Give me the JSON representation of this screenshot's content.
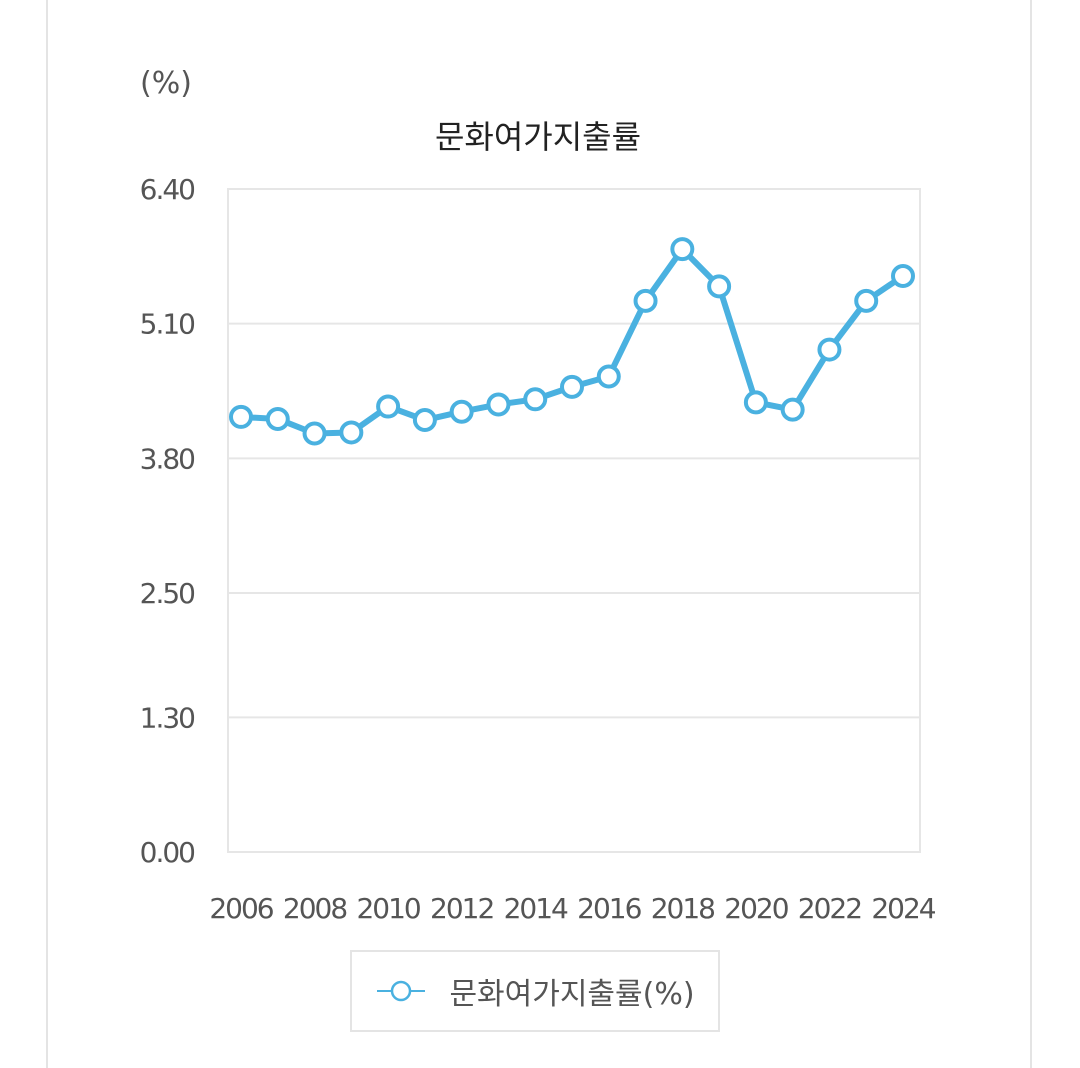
{
  "chart_data": {
    "type": "line",
    "title": "문화여가지출률",
    "unit_label": "(%)",
    "x": [
      2006,
      2007,
      2008,
      2009,
      2010,
      2011,
      2012,
      2013,
      2014,
      2015,
      2016,
      2017,
      2018,
      2019,
      2020,
      2021,
      2022,
      2023,
      2024
    ],
    "x_tick_labels": [
      "2006",
      "2008",
      "2010",
      "2012",
      "2014",
      "2016",
      "2018",
      "2020",
      "2022",
      "2024"
    ],
    "y_tick_labels": [
      "0.00",
      "1.30",
      "2.50",
      "3.80",
      "5.10",
      "6.40"
    ],
    "ylim": [
      0,
      6.4
    ],
    "series": [
      {
        "name": "문화여가지출률(%)",
        "values": [
          4.2,
          4.18,
          4.04,
          4.05,
          4.3,
          4.17,
          4.25,
          4.32,
          4.37,
          4.49,
          4.59,
          5.32,
          5.82,
          5.46,
          4.34,
          4.27,
          4.85,
          5.32,
          5.56
        ]
      }
    ],
    "colors": {
      "line": "#4ab1e0",
      "grid": "#e6e6e6",
      "plot_border": "#e6e6e6"
    },
    "grid": true,
    "legend_position": "bottom"
  }
}
